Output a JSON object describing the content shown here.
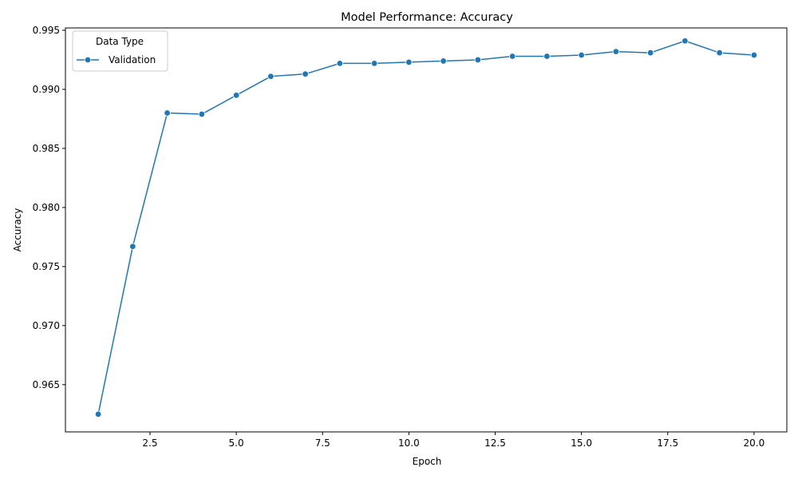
{
  "chart_data": {
    "type": "line",
    "title": "Model Performance: Accuracy",
    "xlabel": "Epoch",
    "ylabel": "Accuracy",
    "xlim": [
      0.05,
      20.95
    ],
    "ylim": [
      0.961,
      0.9952
    ],
    "x_ticks": [
      2.5,
      5.0,
      7.5,
      10.0,
      12.5,
      15.0,
      17.5,
      20.0
    ],
    "x_tick_labels": [
      "2.5",
      "5.0",
      "7.5",
      "10.0",
      "12.5",
      "15.0",
      "17.5",
      "20.0"
    ],
    "y_ticks": [
      0.965,
      0.97,
      0.975,
      0.98,
      0.985,
      0.99,
      0.995
    ],
    "y_tick_labels": [
      "0.965",
      "0.970",
      "0.975",
      "0.980",
      "0.985",
      "0.990",
      "0.995"
    ],
    "grid": false,
    "legend": {
      "title": "Data Type",
      "location": "top-left"
    },
    "series": [
      {
        "name": "Validation",
        "color": "#1f77b4",
        "marker": "circle",
        "x": [
          1,
          2,
          3,
          4,
          5,
          6,
          7,
          8,
          9,
          10,
          11,
          12,
          13,
          14,
          15,
          16,
          17,
          18,
          19,
          20
        ],
        "y": [
          0.9625,
          0.9767,
          0.988,
          0.9879,
          0.9895,
          0.9911,
          0.9913,
          0.9922,
          0.9922,
          0.9923,
          0.9924,
          0.9925,
          0.9928,
          0.9928,
          0.9929,
          0.9932,
          0.9931,
          0.9941,
          0.9931,
          0.9929
        ]
      }
    ]
  }
}
